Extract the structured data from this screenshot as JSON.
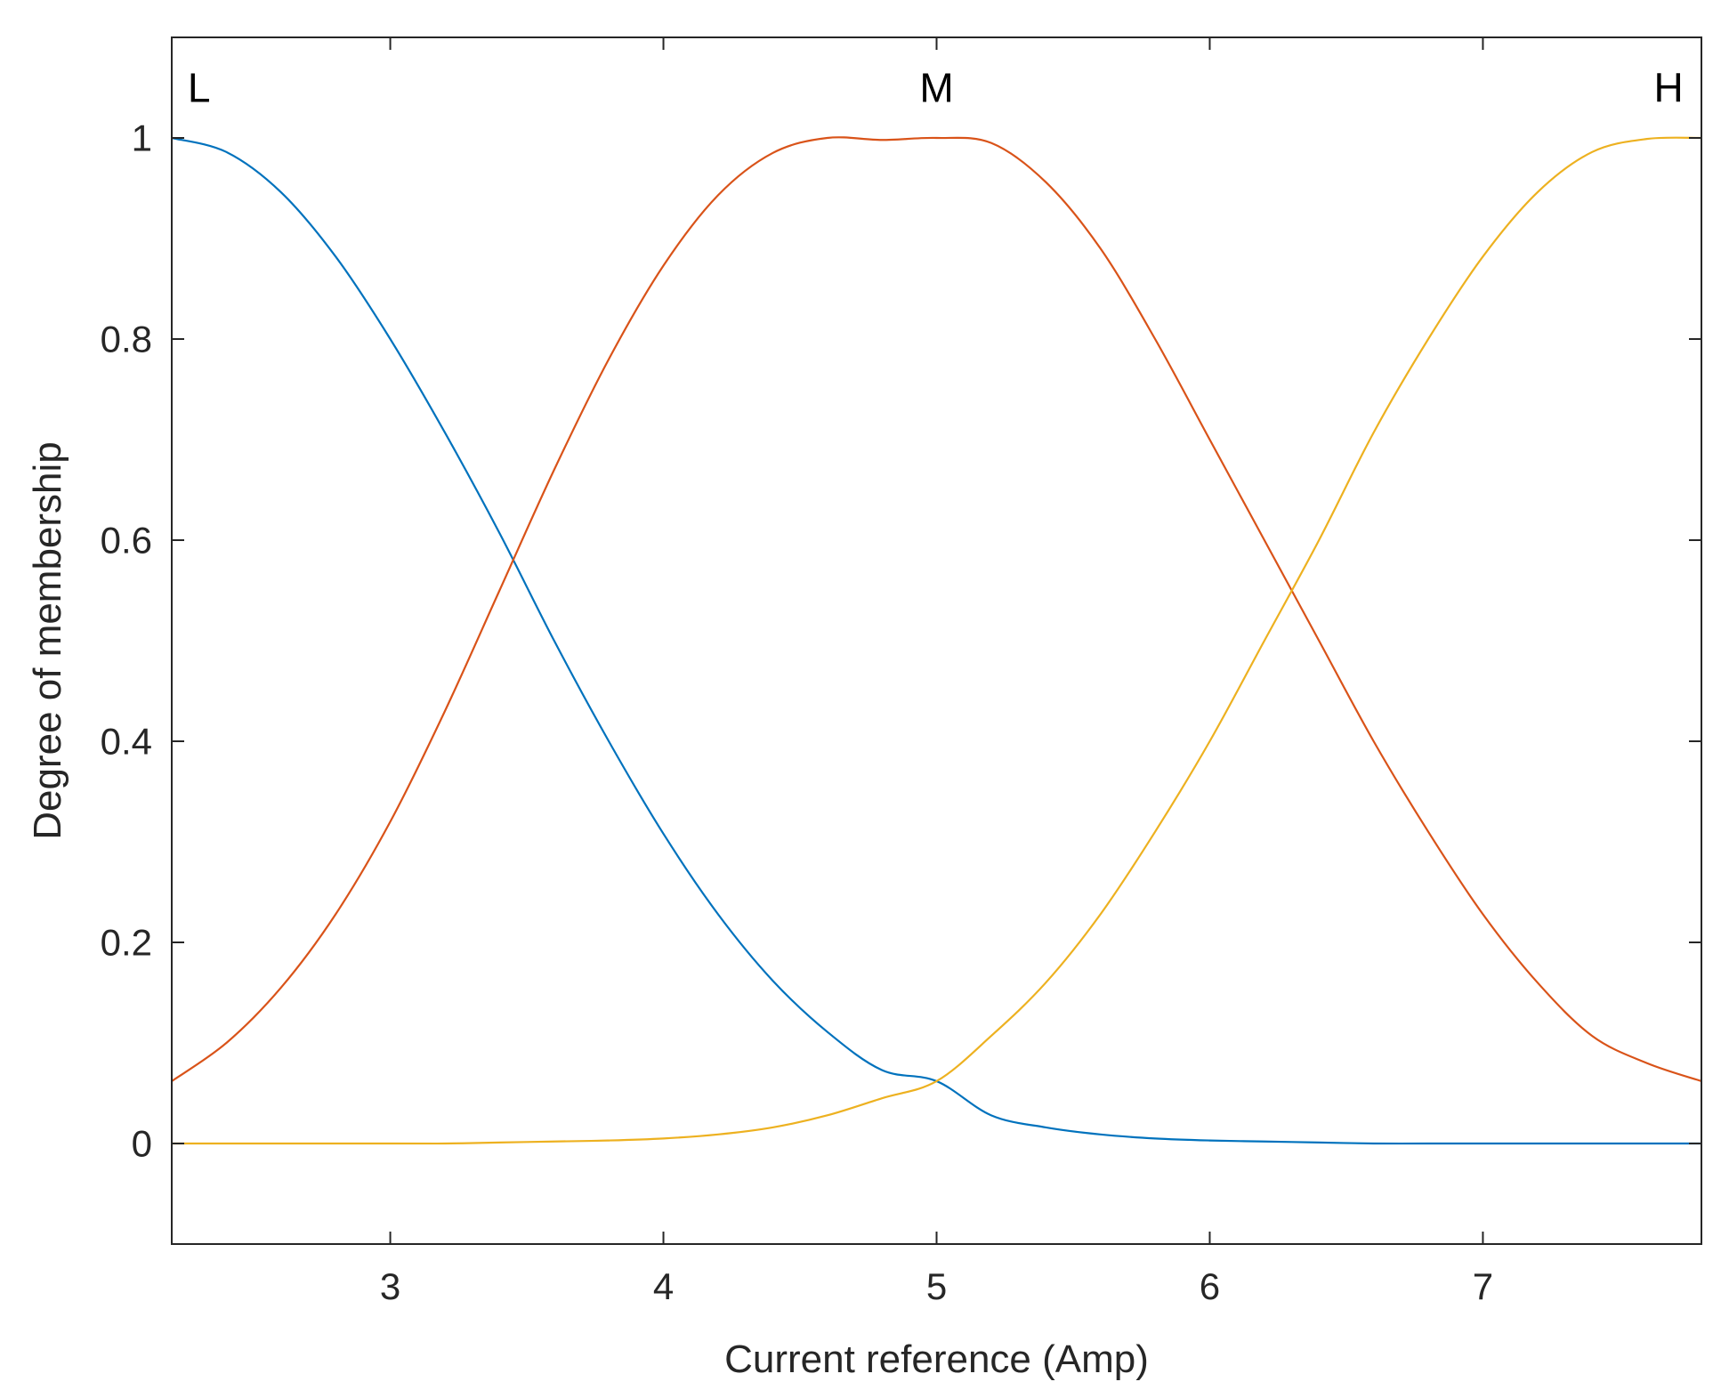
{
  "chart_data": {
    "type": "line",
    "title": "",
    "xlabel": "Current reference (Amp)",
    "ylabel": "Degree of membership",
    "xlim": [
      2.2,
      7.8
    ],
    "ylim": [
      -0.1,
      1.1
    ],
    "grid": false,
    "x_ticks": [
      3,
      4,
      5,
      6,
      7
    ],
    "x_tick_labels": [
      "3",
      "4",
      "5",
      "6",
      "7"
    ],
    "y_ticks": [
      0,
      0.2,
      0.4,
      0.6,
      0.8,
      1
    ],
    "y_tick_labels": [
      "0",
      "0.2",
      "0.4",
      "0.6",
      "0.8",
      "1"
    ],
    "series": [
      {
        "name": "L",
        "color": "#0072BD",
        "x": [
          2.2,
          2.4,
          2.6,
          2.8,
          3.0,
          3.2,
          3.4,
          3.6,
          3.8,
          4.0,
          4.2,
          4.4,
          4.6,
          4.8,
          5.0,
          5.2,
          5.4,
          5.6,
          5.8,
          6.0,
          6.2,
          6.4,
          6.6,
          6.8,
          7.0,
          7.2,
          7.4,
          7.6,
          7.8
        ],
        "values": [
          1.0,
          0.986,
          0.946,
          0.882,
          0.8,
          0.707,
          0.607,
          0.5,
          0.4,
          0.308,
          0.228,
          0.162,
          0.111,
          0.073,
          0.062,
          0.028,
          0.016,
          0.009,
          0.005,
          0.003,
          0.002,
          0.001,
          0.0,
          0.0,
          0.0,
          0.0,
          0.0,
          0.0,
          0.0
        ]
      },
      {
        "name": "M",
        "color": "#D95319",
        "x": [
          2.2,
          2.4,
          2.6,
          2.8,
          3.0,
          3.2,
          3.4,
          3.6,
          3.8,
          4.0,
          4.2,
          4.4,
          4.6,
          4.8,
          5.0,
          5.2,
          5.4,
          5.6,
          5.8,
          6.0,
          6.2,
          6.4,
          6.6,
          6.8,
          7.0,
          7.2,
          7.4,
          7.6,
          7.8
        ],
        "values": [
          0.062,
          0.1,
          0.155,
          0.228,
          0.32,
          0.43,
          0.55,
          0.67,
          0.78,
          0.873,
          0.943,
          0.985,
          1.0,
          0.998,
          1.0,
          0.995,
          0.956,
          0.89,
          0.8,
          0.7,
          0.6,
          0.5,
          0.4,
          0.31,
          0.228,
          0.16,
          0.107,
          0.08,
          0.062
        ]
      },
      {
        "name": "H",
        "color": "#EDB120",
        "x": [
          2.2,
          2.4,
          2.6,
          2.8,
          3.0,
          3.2,
          3.4,
          3.6,
          3.8,
          4.0,
          4.2,
          4.4,
          4.6,
          4.8,
          5.0,
          5.2,
          5.4,
          5.6,
          5.8,
          6.0,
          6.2,
          6.4,
          6.6,
          6.8,
          7.0,
          7.2,
          7.4,
          7.6,
          7.8
        ],
        "values": [
          0.0,
          0.0,
          0.0,
          0.0,
          0.0,
          0.0,
          0.001,
          0.002,
          0.003,
          0.005,
          0.009,
          0.016,
          0.028,
          0.045,
          0.062,
          0.107,
          0.16,
          0.228,
          0.31,
          0.4,
          0.5,
          0.6,
          0.707,
          0.8,
          0.882,
          0.946,
          0.986,
          0.999,
          1.0
        ]
      }
    ],
    "annotations": [
      {
        "text": "L",
        "x": 2.3,
        "y": 1.05
      },
      {
        "text": "M",
        "x": 5.0,
        "y": 1.05
      },
      {
        "text": "H",
        "x": 7.68,
        "y": 1.05
      }
    ]
  }
}
